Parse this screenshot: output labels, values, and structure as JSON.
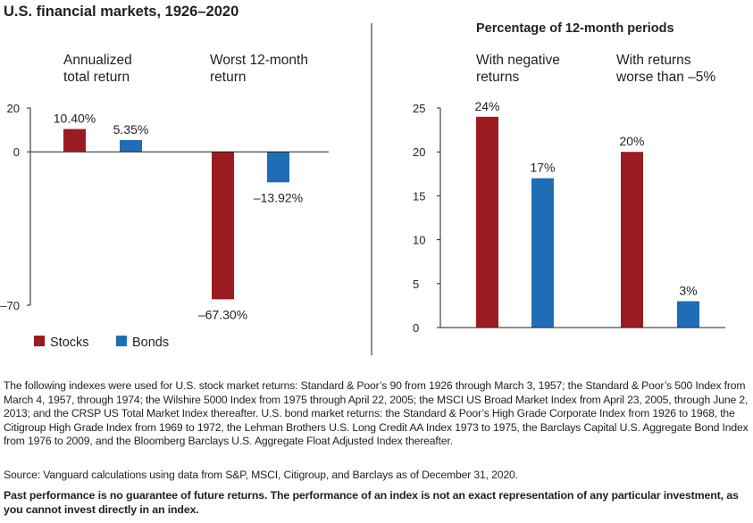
{
  "title": "U.S. financial markets, 1926–2020",
  "colors": {
    "stocks": "#9b1c20",
    "bonds": "#1f6db5",
    "axis": "#231f20"
  },
  "legend": {
    "stocks_label": "Stocks",
    "bonds_label": "Bonds"
  },
  "chart_data": [
    {
      "type": "bar",
      "groups": [
        {
          "label": "Annualized total return",
          "title_lines": [
            "Annualized",
            "total return"
          ]
        },
        {
          "label": "Worst 12-month return",
          "title_lines": [
            "Worst 12-month",
            "return"
          ]
        }
      ],
      "series": [
        {
          "name": "Stocks",
          "values": [
            10.4,
            -67.3
          ],
          "data_labels": [
            "10.40%",
            "–67.30%"
          ]
        },
        {
          "name": "Bonds",
          "values": [
            5.35,
            -13.92
          ],
          "data_labels": [
            "5.35%",
            "–13.92%"
          ]
        }
      ],
      "yticks": [
        20,
        0,
        -70
      ],
      "ytick_labels": [
        "20",
        "0",
        "–70"
      ],
      "ylim": [
        -70,
        20
      ]
    },
    {
      "type": "bar",
      "title": "Percentage of 12-month periods",
      "groups": [
        {
          "label": "With negative returns",
          "title_lines": [
            "With negative",
            "returns"
          ]
        },
        {
          "label": "With returns worse than –5%",
          "title_lines": [
            "With returns",
            "worse than –5%"
          ]
        }
      ],
      "series": [
        {
          "name": "Stocks",
          "values": [
            24,
            20
          ],
          "data_labels": [
            "24%",
            "20%"
          ]
        },
        {
          "name": "Bonds",
          "values": [
            17,
            3
          ],
          "data_labels": [
            "17%",
            "3%"
          ]
        }
      ],
      "yticks": [
        25,
        20,
        15,
        10,
        5,
        0
      ],
      "ytick_labels": [
        "25",
        "20",
        "15",
        "10",
        "5",
        "0"
      ],
      "ylim": [
        0,
        25
      ]
    }
  ],
  "notes": {
    "indexes": "The following indexes were used for U.S. stock market returns: Standard & Poor’s 90 from 1926 through March 3, 1957; the Standard & Poor’s 500 Index from March 4, 1957, through 1974; the Wilshire 5000 Index from 1975 through April 22, 2005; the MSCI US Broad Market Index from April 23, 2005, through June 2, 2013; and the CRSP US Total Market Index thereafter. U.S. bond market returns: the Standard & Poor’s High Grade Corporate Index from 1926 to 1968, the Citigroup High Grade Index from 1969 to 1972, the Lehman Brothers U.S. Long Credit AA Index 1973 to 1975, the Barclays Capital U.S. Aggregate Bond Index from 1976 to 2009, and the Bloomberg Barclays U.S. Aggregate Float Adjusted Index thereafter.",
    "source": "Source: Vanguard calculations using data from S&P, MSCI, Citigroup, and Barclays as of December 31, 2020.",
    "disclaimer": "Past performance is no guarantee of future returns. The performance of an index is not an exact representation of any particular investment, as you cannot invest directly in an index."
  }
}
